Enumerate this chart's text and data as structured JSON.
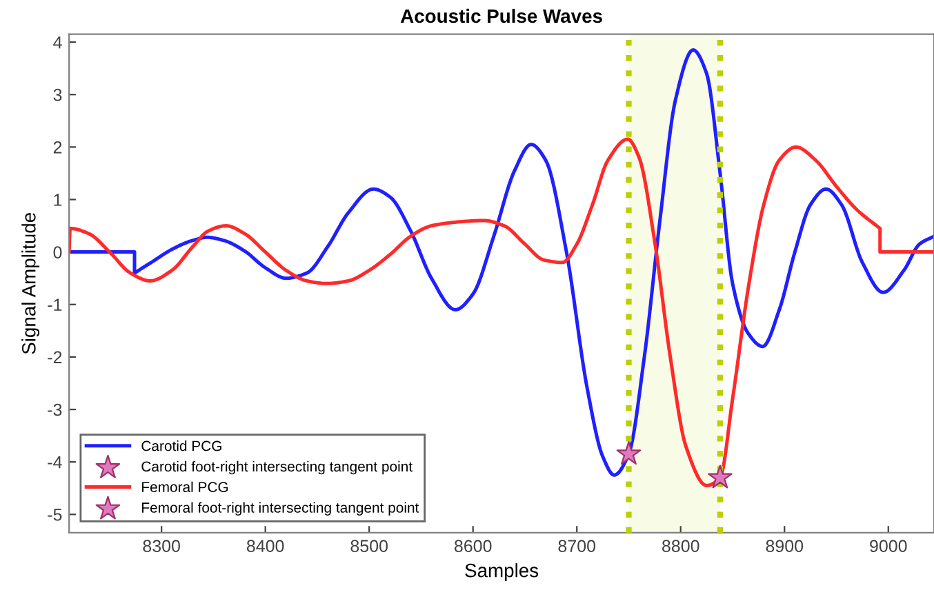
{
  "chart_data": {
    "type": "line",
    "title": "Acoustic Pulse Waves",
    "xlabel": "Samples",
    "ylabel": "Signal Amplitude",
    "xlim": [
      8211,
      9044
    ],
    "xticks": [
      8300,
      8400,
      8500,
      8600,
      8700,
      8800,
      8900,
      9000
    ],
    "ylim": [
      -5.35,
      4.15
    ],
    "yticks": [
      -5,
      -4,
      -3,
      -2,
      -1,
      0,
      1,
      2,
      3,
      4
    ],
    "grid": false,
    "legend": "bottom left",
    "series": [
      {
        "name": "Carotid PCG",
        "color": "#2020ff",
        "x": [
          8211,
          8274,
          8274,
          8290,
          8310,
          8330,
          8344,
          8360,
          8380,
          8400,
          8420,
          8440,
          8460,
          8480,
          8504,
          8520,
          8540,
          8560,
          8583,
          8600,
          8620,
          8640,
          8656,
          8670,
          8690,
          8710,
          8725,
          8736,
          8750,
          8765,
          8780,
          8795,
          8812,
          8825,
          8838,
          8850,
          8865,
          8879,
          8895,
          8910,
          8925,
          8940,
          8955,
          8975,
          8995,
          9015,
          9030,
          9044
        ],
        "values": [
          0,
          0,
          -0.4,
          -0.2,
          0.05,
          0.22,
          0.28,
          0.22,
          0.02,
          -0.3,
          -0.5,
          -0.4,
          0.1,
          0.75,
          1.2,
          1.05,
          0.4,
          -0.5,
          -1.1,
          -0.8,
          0.3,
          1.55,
          2.05,
          1.75,
          0.0,
          -2.6,
          -3.9,
          -4.25,
          -3.85,
          -2.0,
          0.6,
          2.9,
          3.85,
          3.4,
          1.5,
          -0.6,
          -1.55,
          -1.8,
          -1.1,
          0.0,
          0.9,
          1.2,
          0.9,
          -0.2,
          -0.77,
          -0.35,
          0.15,
          0.3
        ]
      },
      {
        "name": "Carotid foot-right intersecting tangent point",
        "type": "scatter",
        "marker": "star",
        "color": "#e07ac0",
        "x": [
          8750
        ],
        "values": [
          -3.85
        ]
      },
      {
        "name": "Femoral PCG",
        "color": "#ff2a2a",
        "x": [
          8211,
          8212,
          8230,
          8250,
          8270,
          8289,
          8310,
          8330,
          8345,
          8362,
          8380,
          8400,
          8420,
          8440,
          8459,
          8480,
          8500,
          8520,
          8540,
          8560,
          8590,
          8610,
          8630,
          8650,
          8668,
          8686,
          8700,
          8715,
          8730,
          8749,
          8760,
          8775,
          8790,
          8805,
          8825,
          8838,
          8850,
          8865,
          8880,
          8895,
          8911,
          8930,
          8950,
          8970,
          8992,
          8992,
          9044
        ],
        "values": [
          0,
          0.45,
          0.35,
          0.0,
          -0.4,
          -0.55,
          -0.35,
          0.1,
          0.4,
          0.5,
          0.35,
          0.0,
          -0.35,
          -0.55,
          -0.6,
          -0.55,
          -0.35,
          -0.05,
          0.3,
          0.5,
          0.58,
          0.6,
          0.5,
          0.15,
          -0.15,
          -0.2,
          0.15,
          0.9,
          1.75,
          2.15,
          1.8,
          0.2,
          -2.0,
          -3.7,
          -4.45,
          -4.3,
          -2.8,
          -0.7,
          0.9,
          1.75,
          2.0,
          1.75,
          1.25,
          0.8,
          0.45,
          0,
          0
        ]
      },
      {
        "name": "Femoral foot-right intersecting tangent point",
        "type": "scatter",
        "marker": "star",
        "color": "#e07ac0",
        "x": [
          8838
        ],
        "values": [
          -4.3
        ]
      }
    ],
    "ref_lines": [
      {
        "axis": "x",
        "value": 8750,
        "color": "#bcd000",
        "line_style": "dotted"
      },
      {
        "axis": "x",
        "value": 8838,
        "color": "#bcd000",
        "line_style": "dotted"
      }
    ],
    "bands": [
      {
        "axis": "x",
        "from": 8750,
        "to": 8838,
        "color": "#f8fbe6"
      }
    ]
  }
}
